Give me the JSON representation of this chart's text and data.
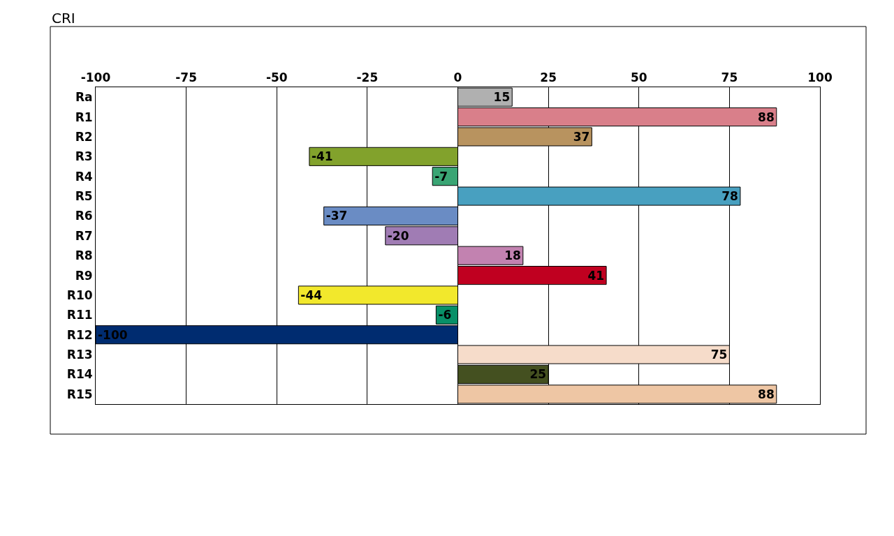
{
  "chart_data": {
    "type": "bar",
    "title": "CRI",
    "orientation": "horizontal",
    "categories": [
      "Ra",
      "R1",
      "R2",
      "R3",
      "R4",
      "R5",
      "R6",
      "R7",
      "R8",
      "R9",
      "R10",
      "R11",
      "R12",
      "R13",
      "R14",
      "R15"
    ],
    "values": [
      15,
      88,
      37,
      -41,
      -7,
      78,
      -37,
      -20,
      18,
      41,
      -44,
      -6,
      -100,
      75,
      25,
      88
    ],
    "colors": [
      "#b0b0b0",
      "#d97f8a",
      "#b8935f",
      "#82a22c",
      "#3aa574",
      "#48a0c0",
      "#6a8cc4",
      "#a07cb4",
      "#c282b0",
      "#c00020",
      "#f2e82c",
      "#089068",
      "#002c70",
      "#f6dcca",
      "#445020",
      "#eec6a4"
    ],
    "xlim": [
      -100,
      100
    ],
    "xticks": [
      -100,
      -75,
      -50,
      -25,
      0,
      25,
      50,
      75,
      100
    ],
    "grid": "x",
    "data_labels": true
  }
}
